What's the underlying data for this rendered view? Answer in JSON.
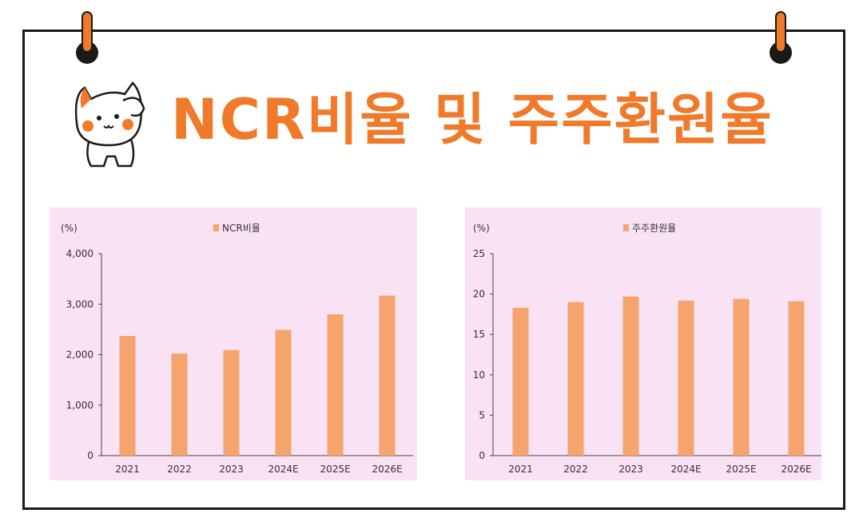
{
  "title": "NCR비율 및 주주환원율",
  "colors": {
    "accent": "#f07a2a",
    "bar": "#f4a46c",
    "panel_bg": "#f9e2f4"
  },
  "icons": [
    "cat-mascot-icon",
    "pin-icon"
  ],
  "chart_data": [
    {
      "type": "bar",
      "unit_label": "(%)",
      "legend": "NCR비율",
      "legend_position": "top-center",
      "categories": [
        "2021",
        "2022",
        "2023",
        "2024E",
        "2025E",
        "2026E"
      ],
      "series": [
        {
          "name": "NCR비율",
          "values": [
            2370,
            2020,
            2090,
            2490,
            2800,
            3170
          ]
        }
      ],
      "ylim": [
        0,
        4000
      ],
      "yticks": [
        0,
        1000,
        2000,
        3000,
        4000
      ],
      "ytick_labels": [
        "0",
        "1,000",
        "2,000",
        "3,000",
        "4,000"
      ],
      "grid": false
    },
    {
      "type": "bar",
      "unit_label": "(%)",
      "legend": "주주환원율",
      "legend_position": "top-center",
      "categories": [
        "2021",
        "2022",
        "2023",
        "2024E",
        "2025E",
        "2026E"
      ],
      "series": [
        {
          "name": "주주환원율",
          "values": [
            18.3,
            19.0,
            19.7,
            19.2,
            19.4,
            19.1
          ]
        }
      ],
      "ylim": [
        0,
        25
      ],
      "yticks": [
        0,
        5,
        10,
        15,
        20,
        25
      ],
      "ytick_labels": [
        "0",
        "5",
        "10",
        "15",
        "20",
        "25"
      ],
      "grid": false
    }
  ]
}
